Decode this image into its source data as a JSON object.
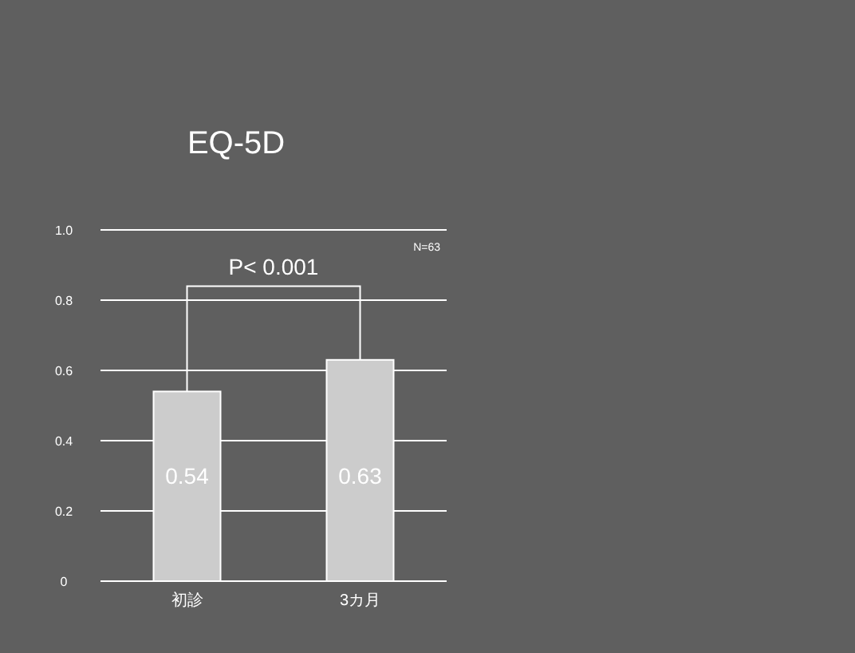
{
  "chart_data": {
    "type": "bar",
    "title": "EQ-5D",
    "categories": [
      "初診",
      "3カ月"
    ],
    "values": [
      0.54,
      0.63
    ],
    "color": "#cccccc",
    "data_labels": true,
    "ylim": [
      0,
      1
    ],
    "yticks": [
      0,
      0.2,
      0.4,
      0.6,
      0.8,
      {
        "value": 1,
        "label": "1.0"
      }
    ],
    "grid": "y",
    "annotations": [
      "N=63",
      "P< 0.001"
    ]
  }
}
